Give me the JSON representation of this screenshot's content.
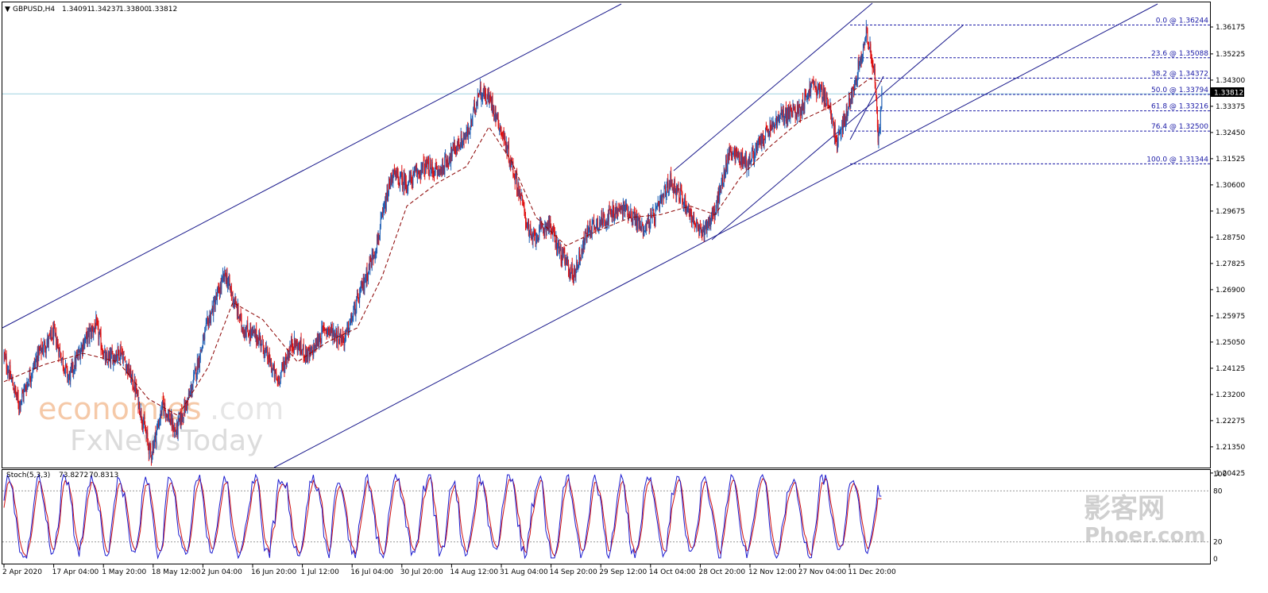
{
  "header": {
    "menu_glyph": "▼",
    "symbol": "GBPUSD,H4",
    "open": "1.34091",
    "high": "1.34237",
    "low": "1.33800",
    "close": "1.33812"
  },
  "stoch_header": {
    "label": "Stoch(5,3,3)",
    "main": "73.8272",
    "signal": "70.8313"
  },
  "colors": {
    "up": "#1f5fb4",
    "down": "#e01010",
    "ma": "#8b0000",
    "channel": "#1a1a8c",
    "fib": "#1a1aa6",
    "stoch_main": "#1c1cd0",
    "stoch_signal": "#d01010",
    "current_line": "#9fd4e0"
  },
  "watermarks": {
    "brand": "economies",
    "domain": ".com",
    "sub": "FxNewsToday",
    "cn": "影客网",
    "cn_url": "Phoer.com"
  },
  "price_axis": {
    "ticks": [
      "1.36175",
      "1.35225",
      "1.34300",
      "1.33375",
      "1.32450",
      "1.31525",
      "1.30600",
      "1.29675",
      "1.28750",
      "1.27825",
      "1.26900",
      "1.25975",
      "1.25050",
      "1.24125",
      "1.23200",
      "1.22275",
      "1.21350",
      "1.20425"
    ],
    "current_price": "1.33812"
  },
  "stoch_axis": {
    "ticks": [
      "100",
      "80",
      "20",
      "0"
    ]
  },
  "time_axis": {
    "ticks": [
      "2 Apr 2020",
      "17 Apr 04:00",
      "1 May 20:00",
      "18 May 12:00",
      "2 Jun 04:00",
      "16 Jun 20:00",
      "1 Jul 12:00",
      "16 Jul 04:00",
      "30 Jul 20:00",
      "14 Aug 12:00",
      "31 Aug 04:00",
      "14 Sep 20:00",
      "29 Sep 12:00",
      "14 Oct 04:00",
      "28 Oct 20:00",
      "12 Nov 12:00",
      "27 Nov 04:00",
      "11 Dec 20:00"
    ]
  },
  "fib_levels": [
    {
      "label": "0.0 @ 1.36244",
      "price": 1.36244
    },
    {
      "label": "23.6 @ 1.35088",
      "price": 1.35088
    },
    {
      "label": "38.2 @ 1.34372",
      "price": 1.34372
    },
    {
      "label": "50.0 @ 1.33794",
      "price": 1.33794
    },
    {
      "label": "61.8 @ 1.33216",
      "price": 1.33216
    },
    {
      "label": "76.4 @ 1.32500",
      "price": 1.325
    },
    {
      "label": "100.0 @ 1.31344",
      "price": 1.31344
    }
  ],
  "chart_data": {
    "type": "line",
    "symbol": "GBPUSD",
    "timeframe": "H4",
    "x": [
      "2 Apr 2020",
      "17 Apr 04:00",
      "1 May 20:00",
      "18 May 12:00",
      "2 Jun 04:00",
      "16 Jun 20:00",
      "1 Jul 12:00",
      "16 Jul 04:00",
      "30 Jul 20:00",
      "14 Aug 12:00",
      "31 Aug 04:00",
      "14 Sep 20:00",
      "29 Sep 12:00",
      "14 Oct 04:00",
      "28 Oct 20:00",
      "12 Nov 12:00",
      "27 Nov 04:00",
      "11 Dec 20:00"
    ],
    "price_path": [
      {
        "x": 0,
        "y": 1.2455
      },
      {
        "x": 0.3,
        "y": 1.2285
      },
      {
        "x": 0.7,
        "y": 1.2465
      },
      {
        "x": 1.0,
        "y": 1.2535
      },
      {
        "x": 1.3,
        "y": 1.2375
      },
      {
        "x": 1.6,
        "y": 1.2505
      },
      {
        "x": 1.85,
        "y": 1.2565
      },
      {
        "x": 2.05,
        "y": 1.2435
      },
      {
        "x": 2.35,
        "y": 1.2475
      },
      {
        "x": 2.65,
        "y": 1.2335
      },
      {
        "x": 2.95,
        "y": 1.2105
      },
      {
        "x": 3.2,
        "y": 1.2285
      },
      {
        "x": 3.45,
        "y": 1.2185
      },
      {
        "x": 3.75,
        "y": 1.2325
      },
      {
        "x": 4.1,
        "y": 1.2575
      },
      {
        "x": 4.45,
        "y": 1.2745
      },
      {
        "x": 4.8,
        "y": 1.2555
      },
      {
        "x": 5.15,
        "y": 1.2515
      },
      {
        "x": 5.5,
        "y": 1.2365
      },
      {
        "x": 5.8,
        "y": 1.2505
      },
      {
        "x": 6.15,
        "y": 1.2455
      },
      {
        "x": 6.45,
        "y": 1.2555
      },
      {
        "x": 6.85,
        "y": 1.2515
      },
      {
        "x": 7.2,
        "y": 1.2695
      },
      {
        "x": 7.5,
        "y": 1.2855
      },
      {
        "x": 7.8,
        "y": 1.3095
      },
      {
        "x": 8.1,
        "y": 1.3065
      },
      {
        "x": 8.45,
        "y": 1.3125
      },
      {
        "x": 8.75,
        "y": 1.3105
      },
      {
        "x": 9.05,
        "y": 1.3185
      },
      {
        "x": 9.35,
        "y": 1.3245
      },
      {
        "x": 9.55,
        "y": 1.3395
      },
      {
        "x": 9.8,
        "y": 1.3355
      },
      {
        "x": 10.05,
        "y": 1.3225
      },
      {
        "x": 10.35,
        "y": 1.3045
      },
      {
        "x": 10.6,
        "y": 1.2865
      },
      {
        "x": 10.95,
        "y": 1.2925
      },
      {
        "x": 11.2,
        "y": 1.2815
      },
      {
        "x": 11.45,
        "y": 1.274
      },
      {
        "x": 11.75,
        "y": 1.2905
      },
      {
        "x": 12.1,
        "y": 1.2945
      },
      {
        "x": 12.5,
        "y": 1.298
      },
      {
        "x": 12.85,
        "y": 1.2905
      },
      {
        "x": 13.1,
        "y": 1.2955
      },
      {
        "x": 13.4,
        "y": 1.3075
      },
      {
        "x": 13.7,
        "y": 1.2995
      },
      {
        "x": 14.0,
        "y": 1.2885
      },
      {
        "x": 14.3,
        "y": 1.2965
      },
      {
        "x": 14.6,
        "y": 1.3185
      },
      {
        "x": 14.95,
        "y": 1.3135
      },
      {
        "x": 15.3,
        "y": 1.3235
      },
      {
        "x": 15.65,
        "y": 1.3305
      },
      {
        "x": 16.0,
        "y": 1.3325
      },
      {
        "x": 16.25,
        "y": 1.3415
      },
      {
        "x": 16.55,
        "y": 1.3365
      },
      {
        "x": 16.75,
        "y": 1.3205
      },
      {
        "x": 17.0,
        "y": 1.3345
      },
      {
        "x": 17.2,
        "y": 1.3495
      },
      {
        "x": 17.35,
        "y": 1.36
      },
      {
        "x": 17.5,
        "y": 1.3455
      },
      {
        "x": 17.58,
        "y": 1.3205
      },
      {
        "x": 17.65,
        "y": 1.3381
      }
    ],
    "moving_average": [
      {
        "x": 0,
        "y": 1.2365
      },
      {
        "x": 0.8,
        "y": 1.2425
      },
      {
        "x": 1.6,
        "y": 1.2465
      },
      {
        "x": 2.3,
        "y": 1.2435
      },
      {
        "x": 2.9,
        "y": 1.2305
      },
      {
        "x": 3.5,
        "y": 1.2245
      },
      {
        "x": 4.1,
        "y": 1.2415
      },
      {
        "x": 4.6,
        "y": 1.2645
      },
      {
        "x": 5.2,
        "y": 1.2585
      },
      {
        "x": 5.9,
        "y": 1.2435
      },
      {
        "x": 6.5,
        "y": 1.2505
      },
      {
        "x": 7.1,
        "y": 1.2555
      },
      {
        "x": 7.6,
        "y": 1.2735
      },
      {
        "x": 8.1,
        "y": 1.2985
      },
      {
        "x": 8.7,
        "y": 1.3065
      },
      {
        "x": 9.3,
        "y": 1.3125
      },
      {
        "x": 9.75,
        "y": 1.3265
      },
      {
        "x": 10.2,
        "y": 1.3145
      },
      {
        "x": 10.7,
        "y": 1.2945
      },
      {
        "x": 11.3,
        "y": 1.2845
      },
      {
        "x": 11.9,
        "y": 1.2895
      },
      {
        "x": 12.6,
        "y": 1.2945
      },
      {
        "x": 13.2,
        "y": 1.2955
      },
      {
        "x": 13.8,
        "y": 1.2985
      },
      {
        "x": 14.3,
        "y": 1.2955
      },
      {
        "x": 14.8,
        "y": 1.3085
      },
      {
        "x": 15.4,
        "y": 1.3195
      },
      {
        "x": 16.0,
        "y": 1.3285
      },
      {
        "x": 16.6,
        "y": 1.3335
      },
      {
        "x": 17.1,
        "y": 1.3395
      },
      {
        "x": 17.4,
        "y": 1.3435
      },
      {
        "x": 17.65,
        "y": 1.3425
      }
    ],
    "stochastic": {
      "main": 73.8272,
      "signal": 70.8313,
      "levels": [
        80,
        20
      ],
      "ylim": [
        0,
        100
      ]
    },
    "ylim": [
      1.2007,
      1.3675
    ]
  }
}
